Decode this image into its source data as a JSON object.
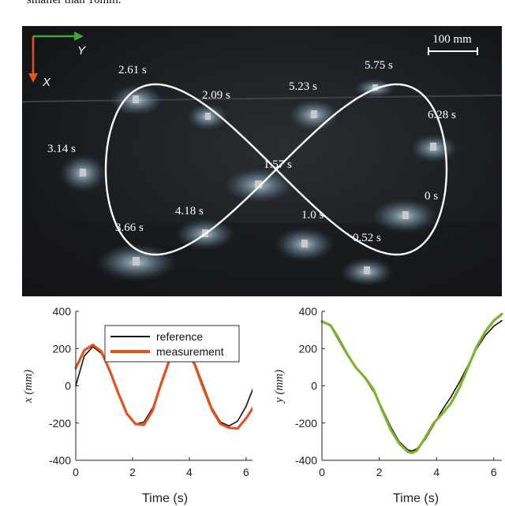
{
  "caption_fragment": "smaller than 10mm.",
  "photo": {
    "axes": {
      "y_label": "Y",
      "x_label": "X",
      "y_color": "#3fa535",
      "x_color": "#e2531f"
    },
    "scale_bar": "100 mm",
    "time_labels": [
      "2.61 s",
      "2.09 s",
      "5.23 s",
      "5.75 s",
      "6.28 s",
      "3.14 s",
      "1.57 s",
      "0 s",
      "4.18 s",
      "3.66 s",
      "1.0 s",
      "0.52 s"
    ]
  },
  "chart_data": [
    {
      "type": "line",
      "xlabel": "Time (s)",
      "ylabel": "x (mm)",
      "xlim": [
        0,
        6.28
      ],
      "ylim": [
        -400,
        400
      ],
      "xticks": [
        0,
        2,
        4,
        6
      ],
      "yticks": [
        400,
        200,
        0,
        -200,
        -400
      ],
      "legend": "top-left",
      "series": [
        {
          "name": "reference",
          "color": "#111111",
          "x": [
            0,
            0.3,
            0.6,
            0.9,
            1.2,
            1.5,
            1.8,
            2.1,
            2.4,
            2.7,
            3.0,
            3.3,
            3.6,
            3.9,
            4.2,
            4.5,
            4.8,
            5.1,
            5.4,
            5.7,
            6.0,
            6.28
          ],
          "y": [
            0,
            160,
            210,
            175,
            80,
            -40,
            -150,
            -205,
            -195,
            -120,
            0,
            130,
            205,
            205,
            120,
            0,
            -120,
            -195,
            -215,
            -190,
            -110,
            0
          ]
        },
        {
          "name": "measurement",
          "color": "#e2531f",
          "x": [
            0,
            0.3,
            0.6,
            0.9,
            1.2,
            1.5,
            1.8,
            2.1,
            2.4,
            2.7,
            3.0,
            3.3,
            3.6,
            3.9,
            4.2,
            4.5,
            4.8,
            5.1,
            5.4,
            5.7,
            6.0,
            6.28
          ],
          "y": [
            95,
            190,
            220,
            185,
            80,
            -40,
            -150,
            -205,
            -210,
            -135,
            10,
            140,
            205,
            200,
            110,
            -15,
            -130,
            -205,
            -225,
            -230,
            -175,
            -110
          ]
        }
      ]
    },
    {
      "type": "line",
      "xlabel": "Time (s)",
      "ylabel": "y (mm)",
      "xlim": [
        0,
        6.28
      ],
      "ylim": [
        -400,
        400
      ],
      "xticks": [
        0,
        2,
        4,
        6
      ],
      "yticks": [
        400,
        200,
        0,
        -200,
        -400
      ],
      "series": [
        {
          "name": "reference",
          "color": "#111111",
          "x": [
            0,
            0.3,
            0.6,
            0.9,
            1.2,
            1.5,
            1.8,
            2.1,
            2.4,
            2.7,
            3.0,
            3.14,
            3.3,
            3.6,
            3.9,
            4.2,
            4.5,
            4.8,
            5.1,
            5.4,
            5.7,
            6.0,
            6.28
          ],
          "y": [
            350,
            320,
            240,
            160,
            100,
            40,
            -30,
            -120,
            -220,
            -300,
            -345,
            -350,
            -340,
            -290,
            -210,
            -130,
            -60,
            20,
            110,
            200,
            270,
            320,
            350
          ]
        },
        {
          "name": "measurement",
          "color": "#7ab52d",
          "x": [
            0,
            0.3,
            0.6,
            0.9,
            1.2,
            1.5,
            1.8,
            2.1,
            2.4,
            2.7,
            3.0,
            3.14,
            3.3,
            3.6,
            3.9,
            4.2,
            4.5,
            4.8,
            5.1,
            5.4,
            5.7,
            6.0,
            6.28
          ],
          "y": [
            345,
            325,
            250,
            165,
            95,
            45,
            -20,
            -130,
            -235,
            -310,
            -355,
            -360,
            -350,
            -280,
            -200,
            -150,
            -95,
            -10,
            100,
            210,
            290,
            350,
            385
          ]
        }
      ]
    }
  ]
}
